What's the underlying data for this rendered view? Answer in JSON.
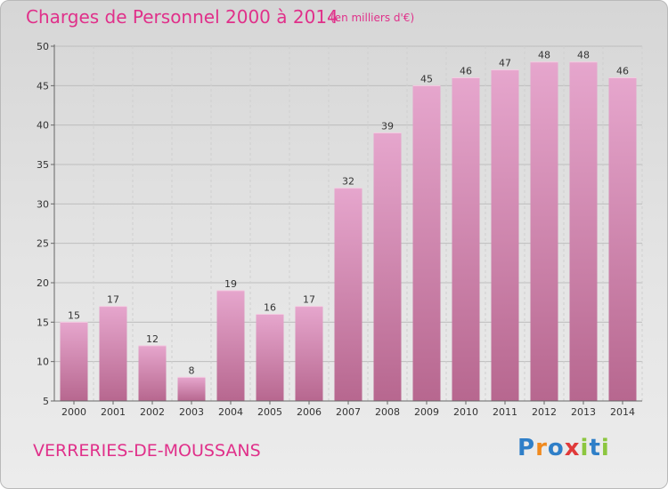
{
  "title": "Charges de Personnel 2000 à 2014",
  "subtitle": "(en milliers d'€)",
  "commune": "VERRERIES-DE-MOUSSANS",
  "logo": {
    "letters": [
      "P",
      "r",
      "o",
      "x",
      "i",
      "t",
      "i"
    ],
    "colors": [
      "#2f7fc8",
      "#f08a1f",
      "#2f7fc8",
      "#e03a3a",
      "#8cc63f",
      "#2f7fc8",
      "#8cc63f"
    ]
  },
  "colors": {
    "title": "#e0308a",
    "bar_top": "#e6a6cd",
    "bar_bottom": "#b7678f"
  },
  "chart_data": {
    "type": "bar",
    "categories": [
      "2000",
      "2001",
      "2002",
      "2003",
      "2004",
      "2005",
      "2006",
      "2007",
      "2008",
      "2009",
      "2010",
      "2011",
      "2012",
      "2013",
      "2014"
    ],
    "values": [
      15,
      17,
      12,
      8,
      19,
      16,
      17,
      32,
      39,
      45,
      46,
      47,
      48,
      48,
      46
    ],
    "ylim": [
      5,
      50
    ],
    "yticks": [
      5,
      10,
      15,
      20,
      25,
      30,
      35,
      40,
      45,
      50
    ],
    "grid": true
  }
}
